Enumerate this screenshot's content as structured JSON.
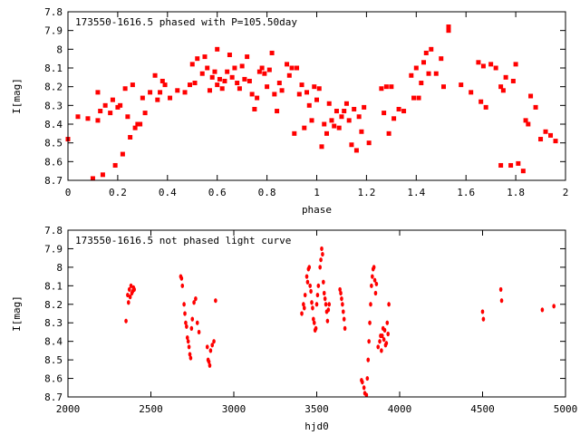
{
  "chart_data": [
    {
      "type": "scatter",
      "title": "173550-1616.5 phased with P=105.50day",
      "xlabel": "phase",
      "ylabel": "I[mag]",
      "xlim": [
        0,
        2
      ],
      "ylim": [
        8.7,
        7.8
      ],
      "y_inverted": true,
      "x_ticks": [
        "0",
        "0.2",
        "0.4",
        "0.6",
        "0.8",
        "1",
        "1.2",
        "1.4",
        "1.6",
        "1.8",
        "2"
      ],
      "y_ticks": [
        "7.8",
        "7.9",
        "8",
        "8.1",
        "8.2",
        "8.3",
        "8.4",
        "8.5",
        "8.6",
        "8.7"
      ],
      "marker_color": "#ff0000",
      "grid": false,
      "series": [
        {
          "points": [
            [
              0.0,
              8.48
            ],
            [
              0.04,
              8.36
            ],
            [
              0.08,
              8.37
            ],
            [
              0.1,
              8.69
            ],
            [
              0.12,
              8.38
            ],
            [
              0.12,
              8.23
            ],
            [
              0.13,
              8.33
            ],
            [
              0.14,
              8.67
            ],
            [
              0.15,
              8.3
            ],
            [
              0.17,
              8.34
            ],
            [
              0.18,
              8.27
            ],
            [
              0.19,
              8.62
            ],
            [
              0.2,
              8.31
            ],
            [
              0.21,
              8.3
            ],
            [
              0.22,
              8.56
            ],
            [
              0.23,
              8.21
            ],
            [
              0.24,
              8.36
            ],
            [
              0.25,
              8.47
            ],
            [
              0.26,
              8.19
            ],
            [
              0.27,
              8.42
            ],
            [
              0.28,
              8.4
            ],
            [
              0.29,
              8.4
            ],
            [
              0.3,
              8.26
            ],
            [
              0.31,
              8.34
            ],
            [
              0.33,
              8.23
            ],
            [
              0.35,
              8.14
            ],
            [
              0.36,
              8.27
            ],
            [
              0.37,
              8.23
            ],
            [
              0.38,
              8.17
            ],
            [
              0.39,
              8.19
            ],
            [
              0.41,
              8.26
            ],
            [
              0.44,
              8.22
            ],
            [
              0.47,
              8.23
            ],
            [
              0.49,
              8.19
            ],
            [
              0.5,
              8.08
            ],
            [
              0.51,
              8.18
            ],
            [
              0.52,
              8.05
            ],
            [
              0.54,
              8.13
            ],
            [
              0.55,
              8.04
            ],
            [
              0.56,
              8.1
            ],
            [
              0.57,
              8.22
            ],
            [
              0.58,
              8.15
            ],
            [
              0.59,
              8.12
            ],
            [
              0.6,
              8.0
            ],
            [
              0.6,
              8.19
            ],
            [
              0.61,
              8.16
            ],
            [
              0.62,
              8.21
            ],
            [
              0.63,
              8.17
            ],
            [
              0.64,
              8.12
            ],
            [
              0.65,
              8.03
            ],
            [
              0.66,
              8.15
            ],
            [
              0.67,
              8.1
            ],
            [
              0.68,
              8.18
            ],
            [
              0.69,
              8.21
            ],
            [
              0.7,
              8.09
            ],
            [
              0.71,
              8.16
            ],
            [
              0.72,
              8.04
            ],
            [
              0.73,
              8.17
            ],
            [
              0.74,
              8.24
            ],
            [
              0.75,
              8.32
            ],
            [
              0.76,
              8.26
            ],
            [
              0.77,
              8.12
            ],
            [
              0.78,
              8.1
            ],
            [
              0.79,
              8.13
            ],
            [
              0.8,
              8.2
            ],
            [
              0.81,
              8.11
            ],
            [
              0.82,
              8.02
            ],
            [
              0.83,
              8.24
            ],
            [
              0.84,
              8.33
            ],
            [
              0.85,
              8.18
            ],
            [
              0.86,
              8.22
            ],
            [
              0.88,
              8.08
            ],
            [
              0.89,
              8.14
            ],
            [
              0.9,
              8.1
            ],
            [
              0.91,
              8.45
            ],
            [
              0.92,
              8.1
            ],
            [
              0.93,
              8.24
            ],
            [
              0.94,
              8.19
            ],
            [
              0.95,
              8.42
            ],
            [
              0.96,
              8.23
            ],
            [
              0.97,
              8.3
            ],
            [
              0.98,
              8.38
            ],
            [
              0.99,
              8.2
            ],
            [
              1.0,
              8.27
            ],
            [
              1.01,
              8.21
            ],
            [
              1.02,
              8.52
            ],
            [
              1.03,
              8.4
            ],
            [
              1.04,
              8.45
            ],
            [
              1.05,
              8.29
            ],
            [
              1.06,
              8.38
            ],
            [
              1.07,
              8.41
            ],
            [
              1.08,
              8.33
            ],
            [
              1.09,
              8.42
            ],
            [
              1.1,
              8.36
            ],
            [
              1.11,
              8.33
            ],
            [
              1.12,
              8.29
            ],
            [
              1.13,
              8.38
            ],
            [
              1.14,
              8.51
            ],
            [
              1.15,
              8.32
            ],
            [
              1.16,
              8.54
            ],
            [
              1.17,
              8.36
            ],
            [
              1.18,
              8.44
            ],
            [
              1.19,
              8.31
            ],
            [
              1.21,
              8.5
            ],
            [
              1.26,
              8.21
            ],
            [
              1.27,
              8.34
            ],
            [
              1.28,
              8.2
            ],
            [
              1.29,
              8.45
            ],
            [
              1.3,
              8.2
            ],
            [
              1.31,
              8.37
            ],
            [
              1.33,
              8.32
            ],
            [
              1.35,
              8.33
            ],
            [
              1.38,
              8.14
            ],
            [
              1.39,
              8.26
            ],
            [
              1.4,
              8.1
            ],
            [
              1.41,
              8.26
            ],
            [
              1.42,
              8.18
            ],
            [
              1.43,
              8.07
            ],
            [
              1.44,
              8.02
            ],
            [
              1.45,
              8.13
            ],
            [
              1.46,
              8.0
            ],
            [
              1.48,
              8.13
            ],
            [
              1.5,
              8.05
            ],
            [
              1.51,
              8.2
            ],
            [
              1.53,
              7.9
            ],
            [
              1.53,
              7.88
            ],
            [
              1.58,
              8.19
            ],
            [
              1.62,
              8.23
            ],
            [
              1.65,
              8.07
            ],
            [
              1.66,
              8.28
            ],
            [
              1.67,
              8.09
            ],
            [
              1.68,
              8.31
            ],
            [
              1.7,
              8.08
            ],
            [
              1.72,
              8.1
            ],
            [
              1.74,
              8.2
            ],
            [
              1.74,
              8.62
            ],
            [
              1.75,
              8.22
            ],
            [
              1.76,
              8.15
            ],
            [
              1.78,
              8.62
            ],
            [
              1.79,
              8.17
            ],
            [
              1.8,
              8.08
            ],
            [
              1.81,
              8.61
            ],
            [
              1.83,
              8.65
            ],
            [
              1.84,
              8.38
            ],
            [
              1.85,
              8.4
            ],
            [
              1.86,
              8.25
            ],
            [
              1.88,
              8.31
            ],
            [
              1.9,
              8.48
            ],
            [
              1.92,
              8.44
            ],
            [
              1.94,
              8.46
            ],
            [
              1.96,
              8.49
            ]
          ]
        }
      ]
    },
    {
      "type": "scatter",
      "title": "173550-1616.5 not phased light curve",
      "xlabel": "hjd0",
      "ylabel": "I[mag]",
      "xlim": [
        2000,
        5000
      ],
      "ylim": [
        8.7,
        7.8
      ],
      "y_inverted": true,
      "x_ticks": [
        "2000",
        "2500",
        "3000",
        "3500",
        "4000",
        "4500",
        "5000"
      ],
      "y_ticks": [
        "7.8",
        "7.9",
        "8",
        "8.1",
        "8.2",
        "8.3",
        "8.4",
        "8.5",
        "8.6",
        "8.7"
      ],
      "marker_color": "#ff0000",
      "grid": false,
      "series": [
        {
          "points": [
            [
              2350,
              8.29
            ],
            [
              2360,
              8.15
            ],
            [
              2365,
              8.19
            ],
            [
              2370,
              8.12
            ],
            [
              2375,
              8.16
            ],
            [
              2380,
              8.1
            ],
            [
              2385,
              8.14
            ],
            [
              2390,
              8.13
            ],
            [
              2395,
              8.11
            ],
            [
              2400,
              8.12
            ],
            [
              2680,
              8.05
            ],
            [
              2685,
              8.06
            ],
            [
              2690,
              8.1
            ],
            [
              2700,
              8.2
            ],
            [
              2705,
              8.25
            ],
            [
              2710,
              8.3
            ],
            [
              2715,
              8.32
            ],
            [
              2720,
              8.38
            ],
            [
              2725,
              8.4
            ],
            [
              2730,
              8.43
            ],
            [
              2735,
              8.47
            ],
            [
              2740,
              8.49
            ],
            [
              2745,
              8.33
            ],
            [
              2750,
              8.28
            ],
            [
              2760,
              8.19
            ],
            [
              2770,
              8.17
            ],
            [
              2780,
              8.3
            ],
            [
              2790,
              8.35
            ],
            [
              2840,
              8.43
            ],
            [
              2845,
              8.5
            ],
            [
              2850,
              8.51
            ],
            [
              2855,
              8.53
            ],
            [
              2860,
              8.45
            ],
            [
              2870,
              8.42
            ],
            [
              2880,
              8.4
            ],
            [
              2890,
              8.18
            ],
            [
              3410,
              8.25
            ],
            [
              3420,
              8.2
            ],
            [
              3425,
              8.22
            ],
            [
              3430,
              8.15
            ],
            [
              3440,
              8.05
            ],
            [
              3445,
              8.08
            ],
            [
              3450,
              8.01
            ],
            [
              3455,
              8.0
            ],
            [
              3460,
              8.1
            ],
            [
              3465,
              8.13
            ],
            [
              3470,
              8.19
            ],
            [
              3475,
              8.22
            ],
            [
              3480,
              8.28
            ],
            [
              3485,
              8.3
            ],
            [
              3490,
              8.34
            ],
            [
              3495,
              8.33
            ],
            [
              3500,
              8.2
            ],
            [
              3505,
              8.15
            ],
            [
              3510,
              8.1
            ],
            [
              3520,
              8.0
            ],
            [
              3525,
              7.96
            ],
            [
              3530,
              7.9
            ],
            [
              3535,
              7.93
            ],
            [
              3540,
              8.08
            ],
            [
              3545,
              8.14
            ],
            [
              3550,
              8.17
            ],
            [
              3555,
              8.2
            ],
            [
              3560,
              8.24
            ],
            [
              3565,
              8.29
            ],
            [
              3570,
              8.23
            ],
            [
              3575,
              8.2
            ],
            [
              3640,
              8.12
            ],
            [
              3645,
              8.14
            ],
            [
              3650,
              8.17
            ],
            [
              3655,
              8.2
            ],
            [
              3660,
              8.24
            ],
            [
              3665,
              8.28
            ],
            [
              3670,
              8.33
            ],
            [
              3770,
              8.61
            ],
            [
              3775,
              8.62
            ],
            [
              3785,
              8.65
            ],
            [
              3790,
              8.68
            ],
            [
              3800,
              8.69
            ],
            [
              3805,
              8.6
            ],
            [
              3810,
              8.5
            ],
            [
              3815,
              8.4
            ],
            [
              3820,
              8.3
            ],
            [
              3825,
              8.2
            ],
            [
              3830,
              8.1
            ],
            [
              3835,
              8.05
            ],
            [
              3840,
              8.01
            ],
            [
              3845,
              8.0
            ],
            [
              3850,
              8.07
            ],
            [
              3855,
              8.14
            ],
            [
              3860,
              8.09
            ],
            [
              3870,
              8.43
            ],
            [
              3880,
              8.4
            ],
            [
              3885,
              8.37
            ],
            [
              3890,
              8.45
            ],
            [
              3895,
              8.37
            ],
            [
              3900,
              8.33
            ],
            [
              3905,
              8.39
            ],
            [
              3910,
              8.34
            ],
            [
              3915,
              8.42
            ],
            [
              3920,
              8.41
            ],
            [
              3925,
              8.3
            ],
            [
              3930,
              8.36
            ],
            [
              3935,
              8.2
            ],
            [
              4500,
              8.24
            ],
            [
              4505,
              8.28
            ],
            [
              4610,
              8.12
            ],
            [
              4615,
              8.18
            ],
            [
              4860,
              8.23
            ],
            [
              4930,
              8.21
            ]
          ]
        }
      ]
    }
  ]
}
